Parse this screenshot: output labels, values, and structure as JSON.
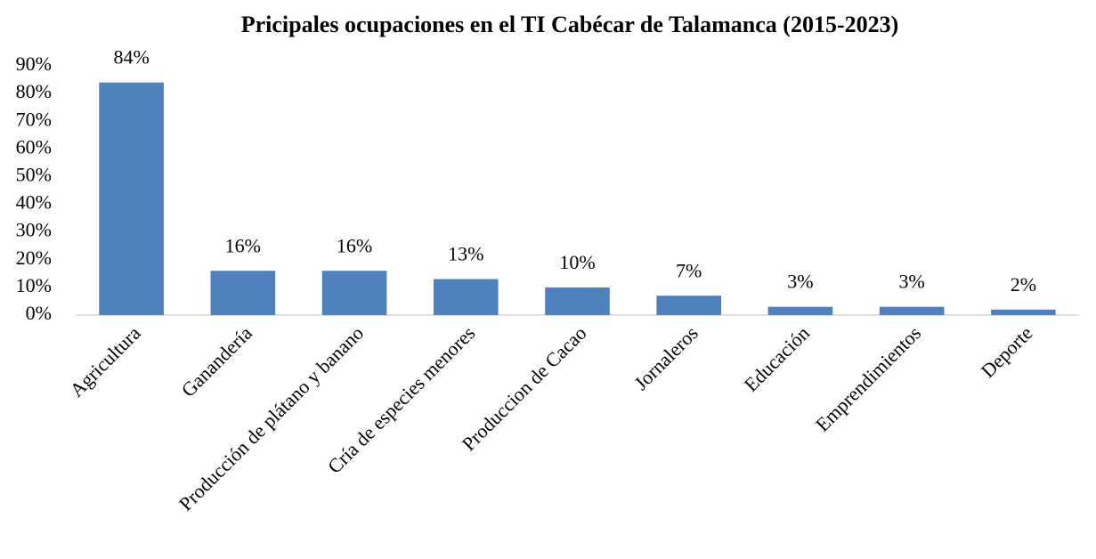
{
  "chart_data": {
    "type": "bar",
    "title": "Pricipales ocupaciones en el TI Cabécar de Talamanca (2015-2023)",
    "categories": [
      "Agricultura",
      "Ganandería",
      "Producción de plátano y banano",
      "Cría de especies menores",
      "Produccion de Cacao",
      "Jornaleros",
      "Educación",
      "Emprendimientos",
      "Deporte"
    ],
    "values": [
      84,
      16,
      16,
      13,
      10,
      7,
      3,
      3,
      2
    ],
    "value_labels": [
      "84%",
      "16%",
      "16%",
      "13%",
      "10%",
      "7%",
      "3%",
      "3%",
      "2%"
    ],
    "color": "#4f81bd",
    "ylim": [
      0,
      90
    ],
    "yticks": [
      {
        "value": 0,
        "label": "0%"
      },
      {
        "value": 10,
        "label": "10%"
      },
      {
        "value": 20,
        "label": "20%"
      },
      {
        "value": 30,
        "label": "30%"
      },
      {
        "value": 40,
        "label": "40%"
      },
      {
        "value": 50,
        "label": "50%"
      },
      {
        "value": 60,
        "label": "60%"
      },
      {
        "value": 70,
        "label": "70%"
      },
      {
        "value": 80,
        "label": "80%"
      },
      {
        "value": 90,
        "label": "90%"
      }
    ],
    "grid": false
  }
}
